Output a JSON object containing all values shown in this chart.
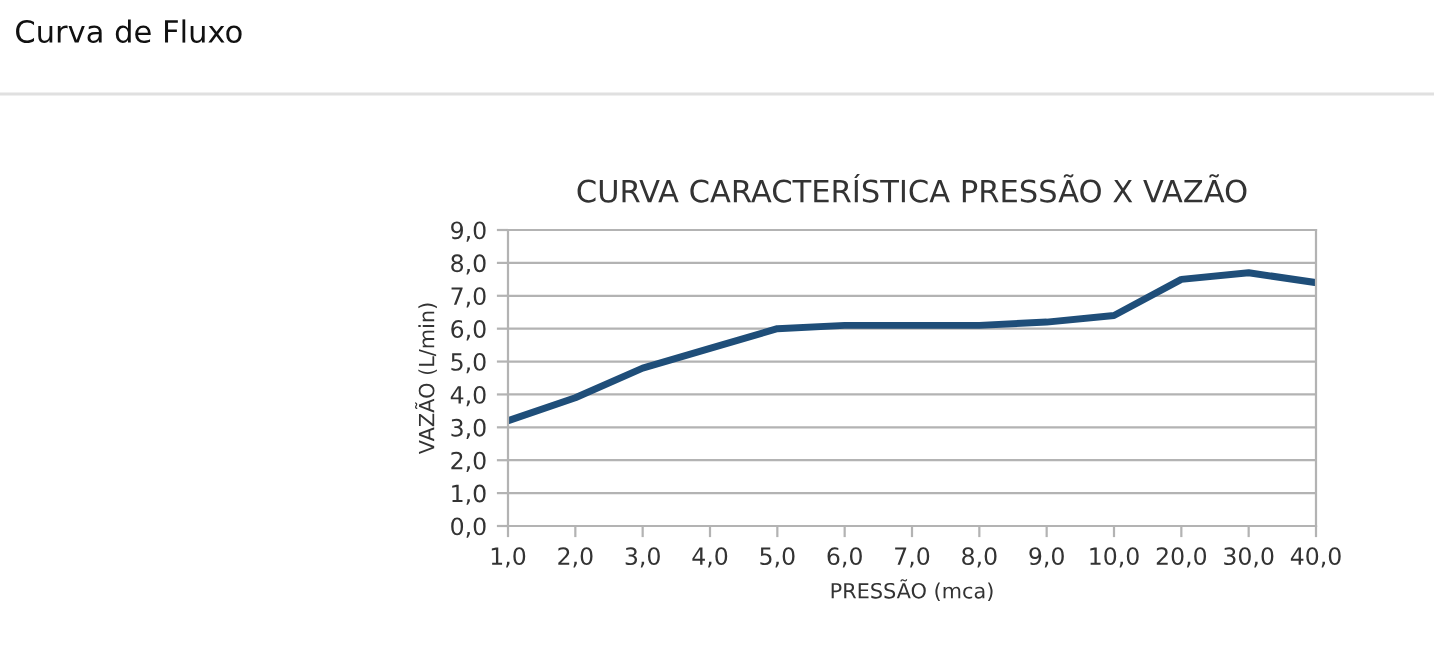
{
  "chart_data": {
    "type": "line",
    "title": "CURVA CARACTERÍSTICA PRESSÃO X VAZÃO",
    "xlabel": "PRESSÃO (mca)",
    "ylabel": "VAZÃO (L/min)",
    "annotations": [
      "Curva de Fluxo"
    ],
    "categories": [
      "1,0",
      "2,0",
      "3,0",
      "4,0",
      "5,0",
      "6,0",
      "7,0",
      "8,0",
      "9,0",
      "10,0",
      "20,0",
      "30,0",
      "40,0"
    ],
    "series": [
      {
        "color": "#1f4e79",
        "values": [
          3.2,
          3.9,
          4.8,
          5.4,
          6.0,
          6.1,
          6.1,
          6.1,
          6.2,
          6.4,
          7.5,
          7.7,
          7.4
        ]
      }
    ],
    "ylim": [
      0,
      9
    ],
    "yticks": [
      {
        "value": 0,
        "label": "0,0"
      },
      {
        "value": 1,
        "label": "1,0"
      },
      {
        "value": 2,
        "label": "2,0"
      },
      {
        "value": 3,
        "label": "3,0"
      },
      {
        "value": 4,
        "label": "4,0"
      },
      {
        "value": 5,
        "label": "5,0"
      },
      {
        "value": 6,
        "label": "6,0"
      },
      {
        "value": 7,
        "label": "7,0"
      },
      {
        "value": 8,
        "label": "8,0"
      },
      {
        "value": 9,
        "label": "9,0"
      }
    ],
    "grid": "y",
    "marker": "none",
    "line_style": "solid"
  }
}
